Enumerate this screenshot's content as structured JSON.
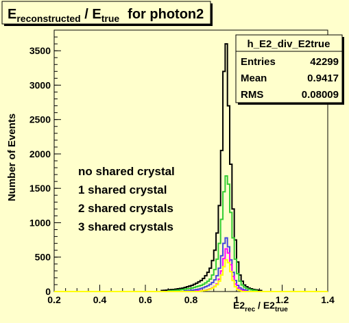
{
  "chart_data": {
    "type": "histogram",
    "title": "E_reconstructed / E_true for photon2",
    "title_parts": {
      "e1": "E",
      "e1_sub": "reconstructed",
      "slash": " / ",
      "e2": "E",
      "e2_sub": "true",
      "tail": "for photon2"
    },
    "xlabel": "E2_rec / E2_true",
    "xlabel_parts": {
      "a": "E2",
      "a_sub": "rec",
      "slash": " / ",
      "b": "E2",
      "b_sub": "true"
    },
    "ylabel": "Number of Events",
    "xlim": [
      0.2,
      1.4
    ],
    "ylim": [
      0,
      3800
    ],
    "x_ticks": [
      0.2,
      0.4,
      0.6,
      0.8,
      1,
      1.2,
      1.4
    ],
    "x_tick_labels": [
      "0.2",
      "0.4",
      "0.6",
      "0.8",
      "1",
      "1.2",
      "1.4"
    ],
    "y_ticks": [
      0,
      500,
      1000,
      1500,
      2000,
      2500,
      3000,
      3500
    ],
    "y_tick_labels": [
      "0",
      "500",
      "1000",
      "1500",
      "2000",
      "2500",
      "3000",
      "3500"
    ],
    "stats_box": {
      "name": "h_E2_div_E2true",
      "rows": [
        {
          "label": "Entries",
          "value": "42299"
        },
        {
          "label": "Mean",
          "value": "0.9417"
        },
        {
          "label": "RMS",
          "value": "0.08009"
        }
      ]
    },
    "legend": [
      {
        "label": "no shared crystal",
        "color": "#ff00ff"
      },
      {
        "label": "1 shared crystal",
        "color": "#ffff00"
      },
      {
        "label": "2 shared crystals",
        "color": "#33cc33"
      },
      {
        "label": "3 shared crystals",
        "color": "#4444dd"
      }
    ],
    "bin_width": 0.01,
    "series": [
      {
        "color": "#000000",
        "bins": [
          [
            0.67,
            15
          ],
          [
            0.68,
            18
          ],
          [
            0.69,
            20
          ],
          [
            0.7,
            25
          ],
          [
            0.71,
            28
          ],
          [
            0.72,
            30
          ],
          [
            0.73,
            35
          ],
          [
            0.74,
            40
          ],
          [
            0.75,
            45
          ],
          [
            0.76,
            50
          ],
          [
            0.77,
            60
          ],
          [
            0.78,
            70
          ],
          [
            0.79,
            80
          ],
          [
            0.8,
            90
          ],
          [
            0.81,
            105
          ],
          [
            0.82,
            120
          ],
          [
            0.83,
            140
          ],
          [
            0.84,
            160
          ],
          [
            0.85,
            190
          ],
          [
            0.86,
            230
          ],
          [
            0.87,
            280
          ],
          [
            0.88,
            340
          ],
          [
            0.89,
            450
          ],
          [
            0.9,
            600
          ],
          [
            0.91,
            850
          ],
          [
            0.92,
            1250
          ],
          [
            0.93,
            2050
          ],
          [
            0.94,
            3200
          ],
          [
            0.95,
            3600
          ],
          [
            0.96,
            2700
          ],
          [
            0.97,
            1850
          ],
          [
            0.98,
            1200
          ],
          [
            0.99,
            750
          ],
          [
            1.0,
            430
          ],
          [
            1.01,
            240
          ],
          [
            1.02,
            150
          ],
          [
            1.03,
            95
          ],
          [
            1.04,
            70
          ],
          [
            1.05,
            50
          ],
          [
            1.06,
            40
          ],
          [
            1.07,
            30
          ],
          [
            1.08,
            25
          ],
          [
            1.09,
            20
          ],
          [
            1.1,
            15
          ]
        ]
      },
      {
        "color": "#33cc33",
        "bins": [
          [
            0.7,
            10
          ],
          [
            0.71,
            12
          ],
          [
            0.72,
            15
          ],
          [
            0.73,
            18
          ],
          [
            0.74,
            20
          ],
          [
            0.75,
            25
          ],
          [
            0.76,
            30
          ],
          [
            0.77,
            35
          ],
          [
            0.78,
            40
          ],
          [
            0.79,
            45
          ],
          [
            0.8,
            50
          ],
          [
            0.81,
            60
          ],
          [
            0.82,
            70
          ],
          [
            0.83,
            80
          ],
          [
            0.84,
            90
          ],
          [
            0.85,
            105
          ],
          [
            0.86,
            125
          ],
          [
            0.87,
            150
          ],
          [
            0.88,
            180
          ],
          [
            0.89,
            240
          ],
          [
            0.9,
            320
          ],
          [
            0.91,
            470
          ],
          [
            0.92,
            700
          ],
          [
            0.93,
            1050
          ],
          [
            0.94,
            1450
          ],
          [
            0.95,
            1680
          ],
          [
            0.96,
            1560
          ],
          [
            0.97,
            1150
          ],
          [
            0.98,
            780
          ],
          [
            0.99,
            470
          ],
          [
            1.0,
            260
          ],
          [
            1.01,
            150
          ],
          [
            1.02,
            95
          ],
          [
            1.03,
            65
          ],
          [
            1.04,
            45
          ],
          [
            1.05,
            35
          ],
          [
            1.06,
            25
          ],
          [
            1.07,
            20
          ],
          [
            1.08,
            15
          ]
        ]
      },
      {
        "color": "#4444dd",
        "bins": [
          [
            0.77,
            10
          ],
          [
            0.78,
            12
          ],
          [
            0.79,
            15
          ],
          [
            0.8,
            18
          ],
          [
            0.81,
            22
          ],
          [
            0.82,
            28
          ],
          [
            0.83,
            35
          ],
          [
            0.84,
            45
          ],
          [
            0.85,
            55
          ],
          [
            0.86,
            70
          ],
          [
            0.87,
            85
          ],
          [
            0.88,
            105
          ],
          [
            0.89,
            130
          ],
          [
            0.9,
            170
          ],
          [
            0.91,
            230
          ],
          [
            0.92,
            340
          ],
          [
            0.93,
            520
          ],
          [
            0.94,
            700
          ],
          [
            0.95,
            780
          ],
          [
            0.96,
            650
          ],
          [
            0.97,
            460
          ],
          [
            0.98,
            280
          ],
          [
            0.99,
            160
          ],
          [
            1.0,
            90
          ],
          [
            1.01,
            55
          ],
          [
            1.02,
            35
          ],
          [
            1.03,
            22
          ],
          [
            1.04,
            15
          ]
        ]
      },
      {
        "color": "#ff00ff",
        "bins": [
          [
            0.82,
            8
          ],
          [
            0.83,
            10
          ],
          [
            0.84,
            12
          ],
          [
            0.85,
            15
          ],
          [
            0.86,
            20
          ],
          [
            0.87,
            30
          ],
          [
            0.88,
            40
          ],
          [
            0.89,
            55
          ],
          [
            0.9,
            75
          ],
          [
            0.91,
            110
          ],
          [
            0.92,
            180
          ],
          [
            0.93,
            300
          ],
          [
            0.94,
            480
          ],
          [
            0.95,
            620
          ],
          [
            0.96,
            560
          ],
          [
            0.97,
            390
          ],
          [
            0.98,
            220
          ],
          [
            0.99,
            110
          ],
          [
            1.0,
            50
          ],
          [
            1.01,
            25
          ],
          [
            1.02,
            12
          ],
          [
            1.03,
            8
          ]
        ]
      },
      {
        "color": "#ffff00",
        "bins": [
          [
            0.84,
            8
          ],
          [
            0.85,
            12
          ],
          [
            0.86,
            18
          ],
          [
            0.87,
            25
          ],
          [
            0.88,
            35
          ],
          [
            0.89,
            50
          ],
          [
            0.9,
            70
          ],
          [
            0.91,
            100
          ],
          [
            0.92,
            150
          ],
          [
            0.93,
            240
          ],
          [
            0.94,
            360
          ],
          [
            0.95,
            460
          ],
          [
            0.96,
            420
          ],
          [
            0.97,
            290
          ],
          [
            0.98,
            160
          ],
          [
            0.99,
            70
          ],
          [
            1.0,
            30
          ],
          [
            1.01,
            12
          ]
        ]
      }
    ]
  }
}
